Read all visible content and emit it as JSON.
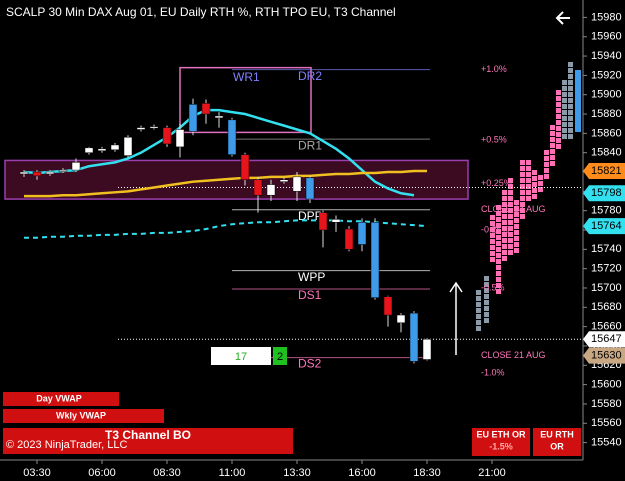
{
  "chart_data": {
    "type": "candlestick",
    "title": "SCALP 30 Min DAX Aug 01, EU Daily RTH %, RTH TPO EU, T3 Channel",
    "categories": [
      null,
      null,
      "03:30",
      null,
      null,
      null,
      null,
      "06:00",
      null,
      null,
      null,
      null,
      "08:30",
      null,
      null,
      null,
      null,
      "11:00",
      null,
      null,
      null,
      null,
      "13:30",
      null,
      null,
      null,
      null,
      "16:00",
      null,
      null,
      null,
      null,
      "18:30",
      null,
      null,
      null,
      null,
      "21:00"
    ],
    "open": [
      null,
      15818,
      15820,
      15818,
      15821,
      15822,
      15840,
      15842,
      15843,
      15837,
      15864,
      15866,
      15866,
      15846,
      15862,
      15891,
      15876,
      15874,
      15838,
      15812,
      15796,
      15810,
      15800,
      15814,
      15778,
      15768,
      15761,
      15745,
      15768,
      15691,
      15664,
      15674,
      15626,
      null,
      null,
      null,
      null,
      null
    ],
    "high": [
      null,
      15822,
      15822,
      15822,
      15824,
      15834,
      15846,
      15846,
      15850,
      15858,
      15868,
      15869,
      15868,
      15870,
      15896,
      15895,
      15882,
      15876,
      15840,
      15815,
      15812,
      15814,
      15820,
      15816,
      15780,
      15775,
      15764,
      15772,
      15772,
      15692,
      15674,
      15676,
      15648,
      null,
      null,
      null,
      null,
      null
    ],
    "low": [
      null,
      15815,
      15812,
      15816,
      15819,
      15820,
      15838,
      15840,
      15841,
      15835,
      15862,
      15864,
      15846,
      15835,
      15858,
      15870,
      15866,
      15836,
      15806,
      15778,
      15790,
      15808,
      15790,
      15788,
      15742,
      15758,
      15738,
      15738,
      15688,
      15660,
      15654,
      15622,
      15625,
      null,
      null,
      null,
      null,
      null
    ],
    "close": [
      null,
      15820,
      15816,
      15820,
      15822,
      15830,
      15845,
      15844,
      15848,
      15856,
      15866,
      15867,
      15849,
      15864,
      15890,
      15880,
      15878,
      15838,
      15812,
      15796,
      15807,
      15812,
      15815,
      15792,
      15760,
      15771,
      15740,
      15768,
      15690,
      15672,
      15672,
      15624,
      15647,
      null,
      null,
      null,
      null,
      null
    ],
    "candle_colors": [
      null,
      "#ffffff",
      "#e8141b",
      "#ffffff",
      "#ffffff",
      "#ffffff",
      "#ffffff",
      "#ffffff",
      "#ffffff",
      "#ffffff",
      "#ffffff",
      "#ffffff",
      "#e8141b",
      "#ffffff",
      "#3d9be9",
      "#e8141b",
      "#ffffff",
      "#3d9be9",
      "#e8141b",
      "#e8141b",
      "#ffffff",
      "#ffffff",
      "#ffffff",
      "#3d9be9",
      "#e8141b",
      "#ffffff",
      "#e8141b",
      "#3d9be9",
      "#3d9be9",
      "#e8141b",
      "#ffffff",
      "#3d9be9",
      "#ffffff",
      null,
      null,
      null,
      null,
      null
    ],
    "lines": [
      {
        "color": "#33e0f0",
        "dashed": false,
        "values": [
          null,
          15820,
          15819,
          15820,
          15821,
          15822,
          15826,
          15828,
          15830,
          15834,
          15840,
          15848,
          15856,
          15866,
          15878,
          15884,
          15884,
          15882,
          15880,
          15876,
          15872,
          15868,
          15864,
          15860,
          15852,
          15844,
          15834,
          15822,
          15810,
          15803,
          15798,
          15796,
          null,
          null,
          null,
          null,
          null,
          null
        ]
      },
      {
        "color": "#33e0f0",
        "dashed": true,
        "values": [
          null,
          15752,
          15752,
          15753,
          15753,
          15754,
          15754,
          15755,
          15755,
          15756,
          15756,
          15757,
          15757,
          15758,
          15759,
          15761,
          15764,
          15766,
          15767,
          15768,
          15768,
          15769,
          15770,
          15770,
          15770,
          15770,
          15769,
          15769,
          15768,
          15767,
          15766,
          15765,
          15764,
          null,
          null,
          null,
          null,
          null
        ]
      },
      {
        "color": "#f0c020",
        "dashed": false,
        "values": [
          null,
          15795,
          15795,
          15795,
          15796,
          15796,
          15797,
          15798,
          15799,
          15800,
          15802,
          15804,
          15806,
          15808,
          15810,
          15811,
          15812,
          15813,
          15814,
          15814,
          15815,
          15815,
          15816,
          15816,
          15817,
          15818,
          15818,
          15819,
          15819,
          15820,
          15820,
          15821,
          15821,
          null,
          null,
          null,
          null,
          null
        ]
      }
    ],
    "zones": [
      {
        "label": "WR1",
        "high": 15928,
        "low": 15861,
        "color": "#e070c0"
      },
      {
        "high": 15832,
        "low": 15792,
        "color": "#9a3fb0"
      }
    ],
    "levels": [
      {
        "label": "DR2",
        "value": 15926,
        "color": "#8080ff"
      },
      {
        "label": "DR1",
        "value": 15854,
        "color": "#aaaaaa"
      },
      {
        "label": "DPP",
        "value": 15781,
        "color": "#ffffff"
      },
      {
        "label": "WPP",
        "value": 15718,
        "color": "#ffffff"
      },
      {
        "label": "DS1",
        "value": 15699,
        "color": "#ff77bb"
      },
      {
        "label": "DS2",
        "value": 15628,
        "color": "#ff77bb"
      }
    ],
    "pct_labels": [
      {
        "label": "+1.0%",
        "value": 15926
      },
      {
        "label": "+0.5%",
        "value": 15853
      },
      {
        "label": "+0.25%",
        "value": 15808
      },
      {
        "label": "CLOSE 24 AUG",
        "value": 15781
      },
      {
        "label": "-0.25%",
        "value": 15760
      },
      {
        "label": "-0.5%",
        "value": 15700
      },
      {
        "label": "CLOSE 21 AUG",
        "value": 15630
      },
      {
        "label": "-1.0%",
        "value": 15612
      }
    ],
    "price_markers": [
      {
        "value": 15821,
        "color": "#ff8c1a"
      },
      {
        "value": 15798,
        "color": "#33e0f0"
      },
      {
        "value": 15764,
        "color": "#33e0f0"
      },
      {
        "value": 15647,
        "color": "#ffffff"
      },
      {
        "value": 15630,
        "color": "#c8a882"
      }
    ],
    "dotted_levels": [
      15804,
      15647
    ],
    "ylim": [
      15522,
      15998
    ],
    "yticks": [
      15540,
      15560,
      15580,
      15600,
      15620,
      15640,
      15660,
      15680,
      15700,
      15720,
      15740,
      15760,
      15780,
      15800,
      15820,
      15840,
      15860,
      15880,
      15900,
      15920,
      15940,
      15960,
      15980
    ],
    "counters": [
      "17",
      "2"
    ],
    "buttons": [
      "Day VWAP",
      "Wkly VWAP",
      "T3 Channel BO"
    ],
    "copyright": "© 2023 NinjaTrader, LLC",
    "or_badges": [
      {
        "line1": "EU ETH OR",
        "line2": "-1.5%"
      },
      {
        "line1": "EU RTH",
        "line2": "OR"
      }
    ]
  }
}
